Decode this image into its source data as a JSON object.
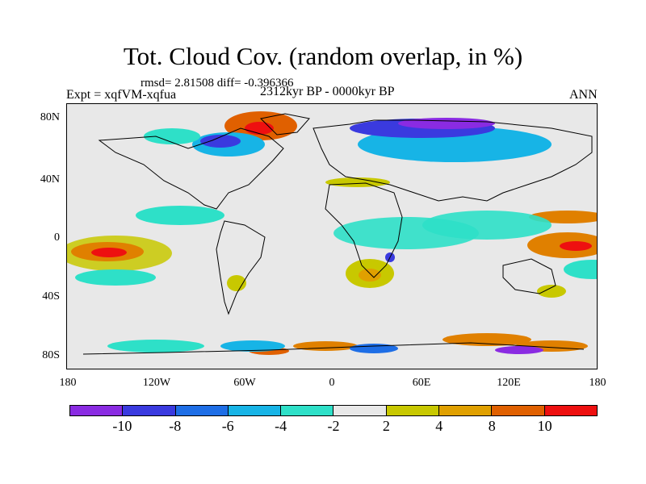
{
  "header": {
    "title": "Tot. Cloud Cov. (random overlap, in %)",
    "stats": "rmsd= 2.81508 diff= -0.396366",
    "experiment": "Expt = xqfVM-xqfua",
    "period": "2312kyr BP - 0000kyr BP",
    "season": "ANN"
  },
  "axes": {
    "lat_ticks": [
      "80N",
      "40N",
      "0",
      "40S",
      "80S"
    ],
    "lon_ticks": [
      "180",
      "120W",
      "60W",
      "0",
      "60E",
      "120E",
      "180"
    ]
  },
  "colorbar": {
    "colors": [
      "#8a2be2",
      "#3a3adf",
      "#1e6ee6",
      "#17b4e6",
      "#2ee0c8",
      "#e8e8e8",
      "#c8c800",
      "#e0a000",
      "#e06000",
      "#ee1010"
    ],
    "labels": [
      "-10",
      "-8",
      "-6",
      "-4",
      "-2",
      "2",
      "4",
      "8",
      "10"
    ]
  }
}
